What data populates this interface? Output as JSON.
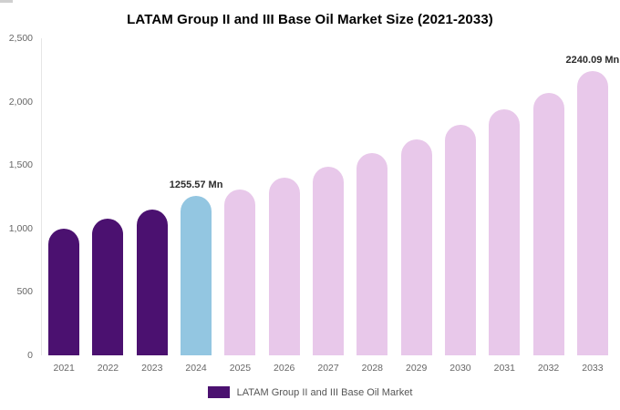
{
  "title": "LATAM Group II and III Base Oil Market Size (2021-2033)",
  "legend": {
    "label": "LATAM Group II and III Base Oil Market",
    "swatch_color": "#4b1170"
  },
  "colors": {
    "historical_bar": "#4b1170",
    "current_year_bar": "#93c6e1",
    "forecast_bar": "#e8c8ea",
    "axis_text": "#666666",
    "value_label_text": "#2b2b2b"
  },
  "chart_data": {
    "type": "bar",
    "title": "LATAM Group II and III Base Oil Market Size (2021-2033)",
    "xlabel": "",
    "ylabel": "",
    "categories": [
      "2021",
      "2022",
      "2023",
      "2024",
      "2025",
      "2026",
      "2027",
      "2028",
      "2029",
      "2030",
      "2031",
      "2032",
      "2033"
    ],
    "values": [
      1000,
      1075,
      1150,
      1255.57,
      1310,
      1400,
      1490,
      1595,
      1700,
      1820,
      1940,
      2070,
      2240.09
    ],
    "unit": "Mn",
    "bar_colors": [
      "#4b1170",
      "#4b1170",
      "#4b1170",
      "#93c6e1",
      "#e8c8ea",
      "#e8c8ea",
      "#e8c8ea",
      "#e8c8ea",
      "#e8c8ea",
      "#e8c8ea",
      "#e8c8ea",
      "#e8c8ea",
      "#e8c8ea"
    ],
    "ylim": [
      0,
      2500
    ],
    "yticks": [
      "0",
      "500",
      "1,000",
      "1,500",
      "2,000",
      "2,500"
    ],
    "grid": false,
    "legend_position": "bottom",
    "annotations": [
      {
        "category": "2024",
        "text": "1255.57 Mn"
      },
      {
        "category": "2033",
        "text": "2240.09 Mn"
      }
    ]
  }
}
